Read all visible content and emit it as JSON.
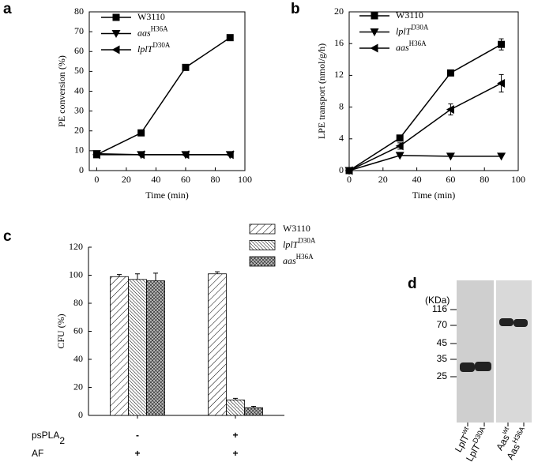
{
  "chart_data": [
    {
      "panel": "a",
      "type": "line",
      "ylabel": "PE conversion (%)",
      "xlabel": "Time (min)",
      "x": [
        0,
        30,
        60,
        90
      ],
      "xlim": [
        -5,
        100
      ],
      "xticks": [
        0,
        20,
        40,
        60,
        80,
        100
      ],
      "ylim": [
        0,
        80
      ],
      "yticks": [
        0,
        10,
        20,
        30,
        40,
        50,
        60,
        70,
        80
      ],
      "series": [
        {
          "name": "W3110",
          "marker": "square",
          "color": "#000000",
          "values": [
            8,
            19,
            52,
            67
          ]
        },
        {
          "name": "aas",
          "name_superscript": "H36A",
          "italic": true,
          "marker": "triangle-down",
          "color": "#000000",
          "values": [
            8.5,
            8,
            8,
            8
          ]
        },
        {
          "name": "lplT",
          "name_superscript": "D30A",
          "italic": true,
          "marker": "triangle-left",
          "color": "#000000",
          "values": [
            8,
            8,
            8,
            8
          ]
        }
      ]
    },
    {
      "panel": "b",
      "type": "line",
      "ylabel": "LPE transport (nmol/g/h)",
      "xlabel": "Time (min)",
      "x": [
        0,
        30,
        60,
        90
      ],
      "xlim": [
        0,
        100
      ],
      "xticks": [
        0,
        20,
        40,
        60,
        80,
        100
      ],
      "ylim": [
        0,
        20
      ],
      "yticks": [
        0,
        4,
        8,
        12,
        16,
        20
      ],
      "series": [
        {
          "name": "W3110",
          "marker": "square",
          "color": "#000000",
          "values": [
            0,
            4.1,
            12.3,
            15.9
          ],
          "errors": [
            0,
            0.2,
            0.3,
            0.7
          ]
        },
        {
          "name": "lplT",
          "name_superscript": "D30A",
          "italic": true,
          "marker": "triangle-down",
          "color": "#000000",
          "values": [
            0,
            1.9,
            1.8,
            1.8
          ]
        },
        {
          "name": "aas",
          "name_superscript": "H36A",
          "italic": true,
          "marker": "triangle-left",
          "color": "#000000",
          "values": [
            0,
            3.1,
            7.7,
            11.0
          ],
          "errors": [
            0,
            0.4,
            0.7,
            1.1
          ]
        }
      ]
    },
    {
      "panel": "c",
      "type": "bar",
      "ylabel": "CFU (%)",
      "ylim": [
        0,
        120
      ],
      "yticks": [
        0,
        20,
        40,
        60,
        80,
        100,
        120
      ],
      "categories": [
        null,
        null
      ],
      "condition_rows": [
        {
          "label": "psPLA",
          "label_subscript": "2",
          "values": [
            "-",
            "+"
          ]
        },
        {
          "label": "AF",
          "values": [
            "+",
            "+"
          ]
        }
      ],
      "series": [
        {
          "name": "W3110",
          "pattern": "diagonal",
          "color": "#000000",
          "values": [
            99,
            101
          ],
          "errors": [
            1.5,
            1.5
          ]
        },
        {
          "name": "lplT",
          "name_superscript": "D30A",
          "italic": true,
          "pattern": "dense-diagonal",
          "color": "#000000",
          "values": [
            97,
            11
          ],
          "errors": [
            4,
            1.2
          ]
        },
        {
          "name": "aas",
          "name_superscript": "H36A",
          "italic": true,
          "pattern": "crosshatch",
          "color": "#000000",
          "values": [
            96,
            5.5
          ],
          "errors": [
            5.5,
            1
          ]
        }
      ]
    }
  ],
  "blot": {
    "panel": "d",
    "unit": "(KDa)",
    "markers": [
      "116",
      "70",
      "45",
      "35",
      "25"
    ],
    "lanes": [
      {
        "name": "LplT",
        "superscript": "wt"
      },
      {
        "name": "LplT",
        "superscript": "D30A"
      },
      {
        "name": "Aas",
        "superscript": "wt"
      },
      {
        "name": "Aas",
        "superscript": "H36A"
      }
    ]
  }
}
